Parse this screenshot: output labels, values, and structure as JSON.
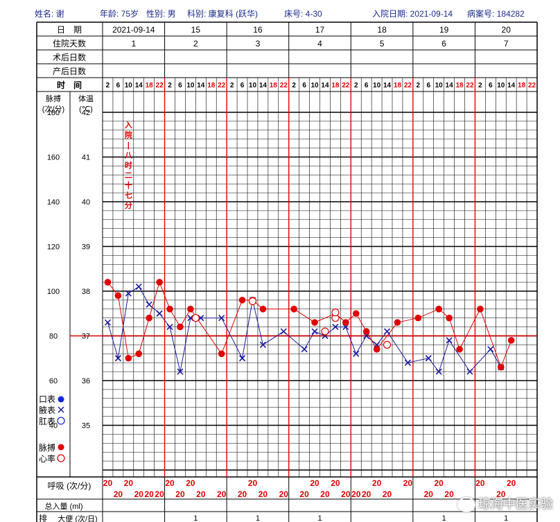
{
  "header": {
    "name": "姓名: 谢",
    "age": "年龄: 75岁",
    "sex": "性别: 男",
    "dept": "科别: 康复科 (跃华)",
    "bed": "床号: 4-30",
    "admit_date": "入院日期: 2021-09-14",
    "record_no": "病案号: 184282"
  },
  "rows": {
    "date_label": "日　期",
    "hospital_days_label": "住院天数",
    "postop_label": "术后日数",
    "postpartum_label": "产后日数",
    "time_label": "时　间",
    "pulse_label": "脉搏",
    "pulse_unit": "(次/分)",
    "temp_label": "体温",
    "temp_unit": "(℃)",
    "resp_label": "呼吸 (次/分)",
    "intake_label": "总入量 (ml)",
    "stool_label": "排",
    "stool_sub": "大便 (次/日)"
  },
  "dates": [
    "2021-09-14",
    "15",
    "16",
    "17",
    "18",
    "19",
    "20"
  ],
  "hospital_days": [
    "1",
    "2",
    "3",
    "4",
    "5",
    "6",
    "7"
  ],
  "time_slots": [
    "2",
    "6",
    "10",
    "14",
    "18",
    "22"
  ],
  "pulse_ticks": [
    "180",
    "160",
    "140",
    "120",
    "100",
    "80",
    "60",
    "40"
  ],
  "temp_ticks": [
    "42",
    "41",
    "40",
    "39",
    "38",
    "37",
    "36",
    "35"
  ],
  "legend": {
    "oral": "口表",
    "axillary": "腋表",
    "rectal": "肛表",
    "pulse": "脉搏",
    "heart": "心率"
  },
  "annotation": "入院—八时二十七分",
  "stool_values": [
    "",
    "1",
    "1",
    "1",
    "",
    "1",
    "1"
  ],
  "watermark": "琼海中医实验",
  "colors": {
    "red": "#e00000",
    "blue": "#1a1aa0",
    "header": "#1a2a8c",
    "grid": "#000000"
  },
  "chart_data": {
    "type": "line",
    "title": "",
    "xlabel": "时间",
    "ylabel": "体温 (℃) / 脉搏 (次/分)",
    "temp_range": [
      34,
      42
    ],
    "pulse_range": [
      20,
      180
    ],
    "x_slots": 42,
    "series": [
      {
        "name": "腋表",
        "marker": "x",
        "color": "#1a1aa0",
        "points": [
          [
            1,
            37.3
          ],
          [
            2,
            36.5
          ],
          [
            3,
            37.95
          ],
          [
            4,
            38.1
          ],
          [
            5,
            37.7
          ],
          [
            6,
            37.5
          ],
          [
            7,
            37.2
          ],
          [
            8,
            36.2
          ],
          [
            9,
            37.4
          ],
          [
            10,
            37.4
          ],
          [
            12,
            37.4
          ],
          [
            14,
            36.5
          ],
          [
            15,
            37.8
          ],
          [
            16,
            36.8
          ],
          [
            18,
            37.1
          ],
          [
            20,
            36.7
          ],
          [
            21,
            37.1
          ],
          [
            22,
            37.0
          ],
          [
            23,
            37.2
          ],
          [
            24,
            37.2
          ],
          [
            25,
            36.6
          ],
          [
            26,
            37.0
          ],
          [
            27,
            36.8
          ],
          [
            28,
            37.1
          ],
          [
            30,
            36.4
          ],
          [
            32,
            36.5
          ],
          [
            33,
            36.2
          ],
          [
            34,
            36.9
          ],
          [
            36,
            36.2
          ],
          [
            38,
            36.7
          ],
          [
            39,
            36.3
          ]
        ]
      },
      {
        "name": "脉搏",
        "marker": "filled-circle",
        "color": "#e00000",
        "points": [
          [
            1,
            104
          ],
          [
            2,
            98
          ],
          [
            3,
            70
          ],
          [
            4,
            72
          ],
          [
            5,
            88
          ],
          [
            6,
            104
          ],
          [
            7,
            92
          ],
          [
            8,
            84
          ],
          [
            9,
            92
          ],
          [
            12,
            72
          ],
          [
            14,
            96
          ],
          [
            15,
            96
          ],
          [
            16,
            92
          ],
          [
            19,
            92
          ],
          [
            21,
            86
          ],
          [
            23,
            90
          ],
          [
            24,
            86
          ],
          [
            25,
            90
          ],
          [
            26,
            82
          ],
          [
            27,
            74
          ],
          [
            29,
            86
          ],
          [
            31,
            88
          ],
          [
            33,
            92
          ],
          [
            34,
            88
          ],
          [
            35,
            74
          ],
          [
            37,
            92
          ],
          [
            39,
            66
          ],
          [
            40,
            78
          ]
        ]
      },
      {
        "name": "心率",
        "marker": "hollow-circle",
        "color": "#e00000",
        "points": [
          [
            22,
            82
          ],
          [
            23,
            88
          ],
          [
            23,
            90.5
          ],
          [
            28,
            76
          ],
          [
            15,
            95.5
          ],
          [
            9.5,
            88
          ]
        ]
      }
    ],
    "respiration": [
      {
        "slot": 1,
        "value": "20",
        "row": 0
      },
      {
        "slot": 2,
        "value": "20",
        "row": 1
      },
      {
        "slot": 3,
        "value": "20",
        "row": 0
      },
      {
        "slot": 4,
        "value": "20",
        "row": 1
      },
      {
        "slot": 5,
        "value": "20",
        "row": 1
      },
      {
        "slot": 6,
        "value": "20",
        "row": 1
      },
      {
        "slot": 7,
        "value": "20",
        "row": 0
      },
      {
        "slot": 8,
        "value": "20",
        "row": 1
      },
      {
        "slot": 9,
        "value": "20",
        "row": 0
      },
      {
        "slot": 10,
        "value": "20",
        "row": 1
      },
      {
        "slot": 12,
        "value": "20",
        "row": 1
      },
      {
        "slot": 14,
        "value": "20",
        "row": 1
      },
      {
        "slot": 15,
        "value": "20",
        "row": 0
      },
      {
        "slot": 16,
        "value": "20",
        "row": 1
      },
      {
        "slot": 18,
        "value": "20",
        "row": 1
      },
      {
        "slot": 20,
        "value": "20",
        "row": 1
      },
      {
        "slot": 21,
        "value": "20",
        "row": 0
      },
      {
        "slot": 22,
        "value": "20",
        "row": 1
      },
      {
        "slot": 23,
        "value": "20",
        "row": 0
      },
      {
        "slot": 24,
        "value": "20",
        "row": 1
      },
      {
        "slot": 25,
        "value": "20",
        "row": 1
      },
      {
        "slot": 26,
        "value": "20",
        "row": 1
      },
      {
        "slot": 27,
        "value": "20",
        "row": 0
      },
      {
        "slot": 28,
        "value": "20",
        "row": 1
      },
      {
        "slot": 30,
        "value": "20",
        "row": 0
      },
      {
        "slot": 32,
        "value": "20",
        "row": 1
      },
      {
        "slot": 33,
        "value": "20",
        "row": 0
      },
      {
        "slot": 34,
        "value": "20",
        "row": 1
      },
      {
        "slot": 37,
        "value": "20",
        "row": 0
      },
      {
        "slot": 39,
        "value": "20",
        "row": 1
      },
      {
        "slot": 40,
        "value": "20",
        "row": 0
      }
    ]
  }
}
